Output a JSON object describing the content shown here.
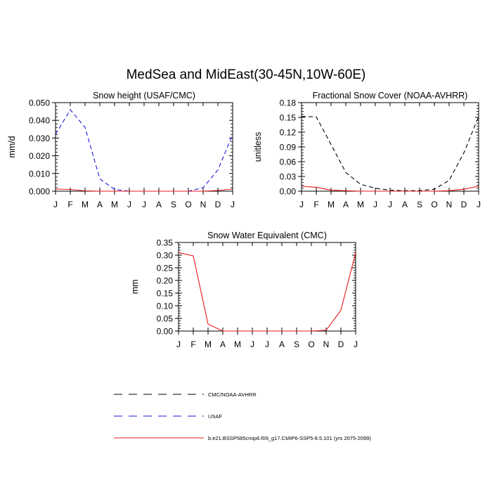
{
  "title": "MedSea and MidEast(30-45N,10W-60E)",
  "months": [
    "J",
    "F",
    "M",
    "A",
    "M",
    "J",
    "J",
    "A",
    "S",
    "O",
    "N",
    "D",
    "J"
  ],
  "colors": {
    "model": "#e8181c",
    "usaf": "#1a1adc",
    "obs": "#000000"
  },
  "chart_data": [
    {
      "type": "line",
      "title": "Snow height (USAF/CMC)",
      "xlabel": "",
      "ylabel": "mm/d",
      "ylim": [
        0,
        0.05
      ],
      "yticks": [
        0,
        0.01,
        0.02,
        0.03,
        0.04,
        0.05
      ],
      "ytick_labels": [
        "0.000",
        "0.010",
        "0.020",
        "0.030",
        "0.040",
        "0.050"
      ],
      "x": [
        "J",
        "F",
        "M",
        "A",
        "M",
        "J",
        "J",
        "A",
        "S",
        "O",
        "N",
        "D",
        "J"
      ],
      "series": [
        {
          "key": "usaf",
          "style": "dashed",
          "color": "#1a1adc",
          "values": [
            0.032,
            0.046,
            0.036,
            0.007,
            0.001,
            0.0,
            0.0,
            0.0,
            0.0,
            0.0,
            0.002,
            0.012,
            0.032
          ]
        },
        {
          "key": "model",
          "style": "solid",
          "color": "#e8181c",
          "values": [
            0.0012,
            0.001,
            0.0002,
            0.0,
            0.0,
            0.0,
            0.0,
            0.0,
            0.0,
            0.0,
            0.0,
            0.0004,
            0.0012
          ]
        }
      ]
    },
    {
      "type": "line",
      "title": "Fractional Snow Cover (NOAA-AVHRR)",
      "xlabel": "",
      "ylabel": "unitless",
      "ylim": [
        0,
        0.18
      ],
      "yticks": [
        0,
        0.03,
        0.06,
        0.09,
        0.12,
        0.15,
        0.18
      ],
      "ytick_labels": [
        "0.00",
        "0.03",
        "0.06",
        "0.09",
        "0.12",
        "0.15",
        "0.18"
      ],
      "x": [
        "J",
        "F",
        "M",
        "A",
        "M",
        "J",
        "J",
        "A",
        "S",
        "O",
        "N",
        "D",
        "J"
      ],
      "series": [
        {
          "key": "obs",
          "style": "dashed",
          "color": "#000000",
          "values": [
            0.152,
            0.151,
            0.095,
            0.038,
            0.014,
            0.006,
            0.002,
            0.001,
            0.001,
            0.004,
            0.022,
            0.078,
            0.152
          ]
        },
        {
          "key": "model",
          "style": "solid",
          "color": "#e8181c",
          "values": [
            0.01,
            0.008,
            0.002,
            0.001,
            0.0,
            0.0,
            0.0,
            0.0,
            0.0,
            0.0,
            0.001,
            0.004,
            0.01
          ]
        }
      ]
    },
    {
      "type": "line",
      "title": "Snow Water Equivalent (CMC)",
      "xlabel": "",
      "ylabel": "mm",
      "ylim": [
        0,
        0.35
      ],
      "yticks": [
        0,
        0.05,
        0.1,
        0.15,
        0.2,
        0.25,
        0.3,
        0.35
      ],
      "ytick_labels": [
        "0.00",
        "0.05",
        "0.10",
        "0.15",
        "0.20",
        "0.25",
        "0.30",
        "0.35"
      ],
      "x": [
        "J",
        "F",
        "M",
        "A",
        "M",
        "J",
        "J",
        "A",
        "S",
        "O",
        "N",
        "D",
        "J"
      ],
      "series": [
        {
          "key": "obs",
          "style": "dashed",
          "color": "#000000",
          "values": [
            0.0,
            0.0,
            0.0,
            0.0,
            0.0,
            0.0,
            0.0,
            0.0,
            0.0,
            0.0,
            0.0,
            0.0,
            0.0
          ]
        },
        {
          "key": "model",
          "style": "solid",
          "color": "#e8181c",
          "values": [
            0.31,
            0.297,
            0.027,
            0.0,
            0.0,
            0.0,
            0.0,
            0.0,
            0.0,
            0.0,
            0.003,
            0.082,
            0.31
          ]
        }
      ]
    }
  ],
  "legend": [
    {
      "key": "obs",
      "style": "dashed",
      "color": "#000000",
      "label": "CMC/NOAA-AVHRR"
    },
    {
      "key": "usaf",
      "style": "dashed",
      "color": "#1a1adc",
      "label": "USAF"
    },
    {
      "key": "model",
      "style": "solid",
      "color": "#e8181c",
      "label": "b.e21.BSSP585cmip6.f09_g17.CMIP6-SSP5-8.5.101 (yrs 2075-2099)"
    }
  ]
}
